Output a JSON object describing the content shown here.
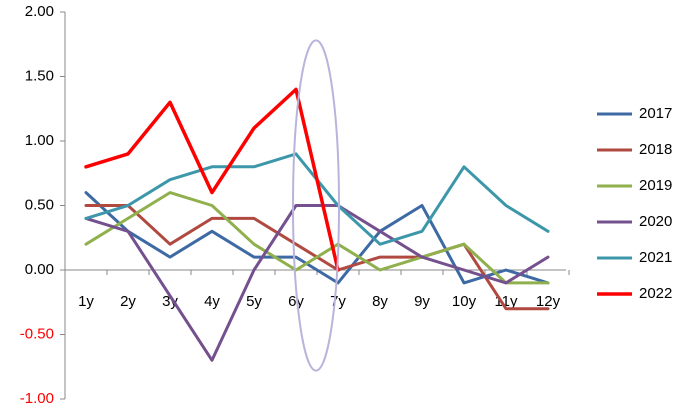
{
  "chart_data": {
    "type": "line",
    "categories": [
      "1y",
      "2y",
      "3y",
      "4y",
      "5y",
      "6y",
      "7y",
      "8y",
      "9y",
      "10y",
      "11y",
      "12y"
    ],
    "y_ticks": [
      "2.00",
      "1.50",
      "1.00",
      "0.50",
      "0.00",
      "-0.50",
      "-1.00"
    ],
    "ylim": [
      -1.0,
      2.0
    ],
    "grid": false,
    "legend_position": "right",
    "series": [
      {
        "name": "2017",
        "color": "#3e6aa4",
        "values": [
          0.6,
          0.3,
          0.1,
          0.3,
          0.1,
          0.1,
          -0.1,
          0.3,
          0.5,
          -0.1,
          0.0,
          -0.1
        ]
      },
      {
        "name": "2018",
        "color": "#b04a41",
        "values": [
          0.5,
          0.5,
          0.2,
          0.4,
          0.4,
          0.2,
          0.0,
          0.1,
          0.1,
          0.2,
          -0.3,
          -0.3
        ]
      },
      {
        "name": "2019",
        "color": "#8fb04d",
        "values": [
          0.2,
          0.4,
          0.6,
          0.5,
          0.2,
          0.0,
          0.2,
          0.0,
          0.1,
          0.2,
          -0.1,
          -0.1
        ]
      },
      {
        "name": "2020",
        "color": "#74508f",
        "values": [
          0.4,
          0.3,
          -0.2,
          -0.7,
          0.0,
          0.5,
          0.5,
          0.3,
          0.1,
          0.0,
          -0.1,
          0.1
        ]
      },
      {
        "name": "2021",
        "color": "#3c97aa",
        "values": [
          0.4,
          0.5,
          0.7,
          0.8,
          0.8,
          0.9,
          0.5,
          0.2,
          0.3,
          0.8,
          0.5,
          0.3
        ]
      },
      {
        "name": "2022",
        "color": "#ff0000",
        "values": [
          0.8,
          0.9,
          1.3,
          0.6,
          1.1,
          1.4,
          0.0,
          null,
          null,
          null,
          null,
          null
        ]
      }
    ],
    "annotation": {
      "type": "ellipse",
      "color": "#b8b4dc",
      "center_x": "6y",
      "center_y": 0.5,
      "spans_y": [
        -0.78,
        1.78
      ]
    }
  }
}
